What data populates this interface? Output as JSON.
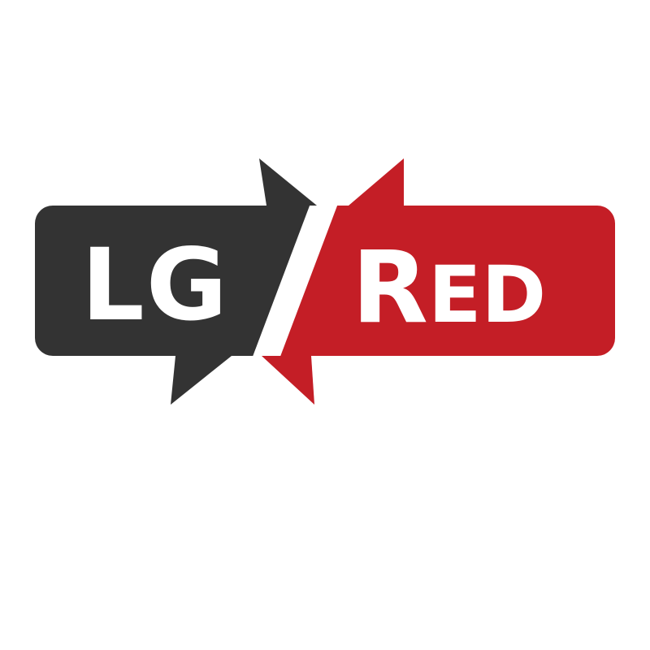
{
  "logo": {
    "left_text": "LG",
    "right_text_initial": "R",
    "right_text_rest": "ED",
    "colors": {
      "dark": "#333333",
      "red": "#c41e26",
      "text": "#ffffff",
      "background": "#ffffff"
    }
  }
}
